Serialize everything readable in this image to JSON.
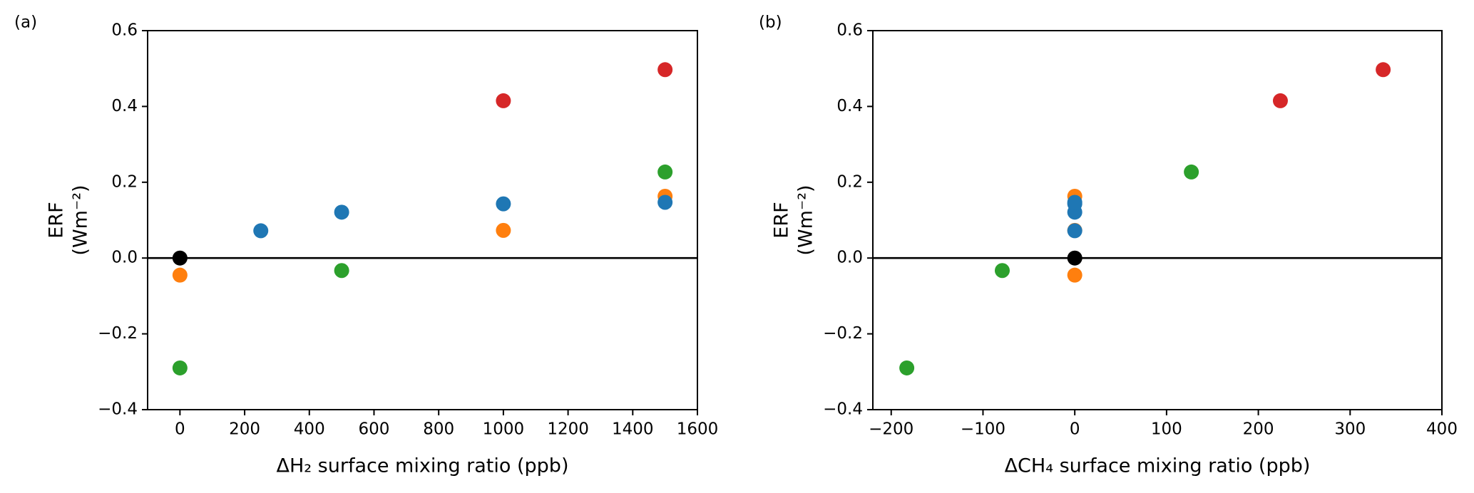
{
  "chart_data": [
    {
      "type": "scatter",
      "panel_label": "(a)",
      "xlabel": "ΔH₂ surface mixing ratio (ppb)",
      "ylabel": [
        "ERF",
        "(Wm⁻²)"
      ],
      "xlim": [
        -100,
        1600
      ],
      "ylim": [
        -0.4,
        0.6
      ],
      "xticks": [
        0,
        200,
        400,
        600,
        800,
        1000,
        1200,
        1400,
        1600
      ],
      "yticks": [
        {
          "value": -0.4,
          "label": "−0.4"
        },
        {
          "value": -0.2,
          "label": "−0.2"
        },
        {
          "value": 0,
          "label": "0.0"
        },
        0.2,
        0.4,
        0.6
      ],
      "zero_line": true,
      "series": [
        {
          "color": "#ff7f0e",
          "x": [
            0,
            1000,
            1500
          ],
          "values": [
            -0.045,
            0.073,
            0.163
          ]
        },
        {
          "color": "#2ca02c",
          "x": [
            0,
            500,
            1500
          ],
          "values": [
            -0.29,
            -0.033,
            0.227
          ]
        },
        {
          "color": "#d62728",
          "x": [
            1000,
            1500
          ],
          "values": [
            0.415,
            0.497
          ]
        },
        {
          "color": "#1f77b4",
          "x": [
            250,
            500,
            1000,
            1500
          ],
          "values": [
            0.072,
            0.121,
            0.143,
            0.147
          ]
        },
        {
          "color": "#000000",
          "x": [
            0
          ],
          "values": [
            0
          ]
        }
      ]
    },
    {
      "type": "scatter",
      "panel_label": "(b)",
      "xlabel": "ΔCH₄ surface mixing ratio (ppb)",
      "ylabel": [
        "ERF",
        "(Wm⁻²)"
      ],
      "xlim": [
        -220,
        400
      ],
      "ylim": [
        -0.4,
        0.6
      ],
      "xticks": [
        {
          "value": -200,
          "label": "−200"
        },
        {
          "value": -100,
          "label": "−100"
        },
        0,
        100,
        200,
        300,
        400
      ],
      "yticks": [
        {
          "value": -0.4,
          "label": "−0.4"
        },
        {
          "value": -0.2,
          "label": "−0.2"
        },
        {
          "value": 0,
          "label": "0.0"
        },
        0.2,
        0.4,
        0.6
      ],
      "zero_line": true,
      "series": [
        {
          "color": "#ff7f0e",
          "x": [
            0,
            0,
            0
          ],
          "values": [
            -0.045,
            0.073,
            0.163
          ]
        },
        {
          "color": "#2ca02c",
          "x": [
            -183,
            -79,
            127
          ],
          "values": [
            -0.29,
            -0.033,
            0.227
          ]
        },
        {
          "color": "#d62728",
          "x": [
            224,
            336
          ],
          "values": [
            0.415,
            0.497
          ]
        },
        {
          "color": "#1f77b4",
          "x": [
            0,
            0,
            0,
            0
          ],
          "values": [
            0.072,
            0.121,
            0.143,
            0.147
          ]
        },
        {
          "color": "#000000",
          "x": [
            0
          ],
          "values": [
            0
          ]
        }
      ]
    }
  ]
}
